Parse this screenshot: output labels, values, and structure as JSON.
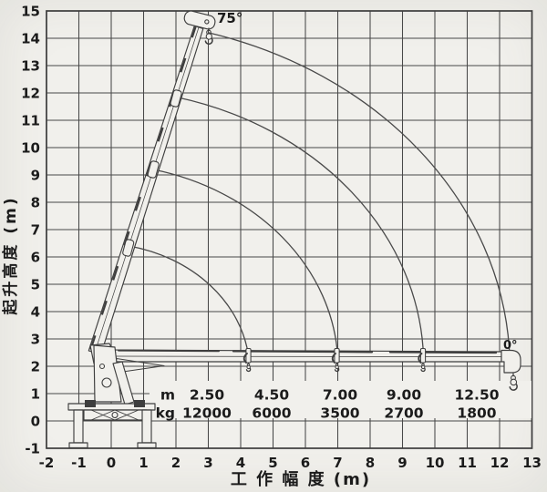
{
  "chart_data": {
    "type": "table",
    "subtype": "crane-working-range-diagram",
    "title": "",
    "xlabel": "工作幅度 (m)",
    "xlabel_display": "工 作 幅 度 (m)",
    "ylabel": "起升高度 (m)",
    "xlim": [
      -2,
      13
    ],
    "ylim": [
      -1,
      15
    ],
    "grid": true,
    "x_ticks": [
      "-2",
      "-1",
      "0",
      "1",
      "2",
      "3",
      "4",
      "5",
      "6",
      "7",
      "8",
      "9",
      "10",
      "11",
      "12",
      "13"
    ],
    "y_ticks": [
      "15",
      "14",
      "13",
      "12",
      "11",
      "10",
      "9",
      "8",
      "7",
      "6",
      "5",
      "4",
      "3",
      "2",
      "1",
      "0",
      "-1"
    ],
    "annotations": {
      "max_angle": "75°",
      "min_angle": "0°"
    },
    "capacity_table": {
      "row_labels": [
        "m",
        "kg"
      ],
      "radius_m": [
        "2.50",
        "4.50",
        "7.00",
        "9.00",
        "12.50"
      ],
      "load_kg": [
        "12000",
        "6000",
        "3500",
        "2700",
        "1800"
      ]
    },
    "boom": {
      "pivot": [
        -0.5,
        2.5
      ],
      "angle_range_deg": [
        0,
        75
      ]
    },
    "extension_arcs": [
      {
        "start": [
          0.55,
          6.4
        ],
        "end": [
          4.25,
          2.32
        ],
        "r": 4.7
      },
      {
        "start": [
          1.3,
          9.2
        ],
        "end": [
          7.0,
          2.32
        ],
        "r": 7.45
      },
      {
        "start": [
          2.0,
          11.85
        ],
        "end": [
          9.65,
          2.32
        ],
        "r": 10.1
      },
      {
        "start": [
          3.02,
          14.2
        ],
        "end": [
          12.3,
          2.62
        ],
        "r": 12.75
      }
    ],
    "colors": {
      "ink": "#3e3e3e",
      "paper": "#f1f0ec",
      "text": "#1b1b1b"
    }
  }
}
